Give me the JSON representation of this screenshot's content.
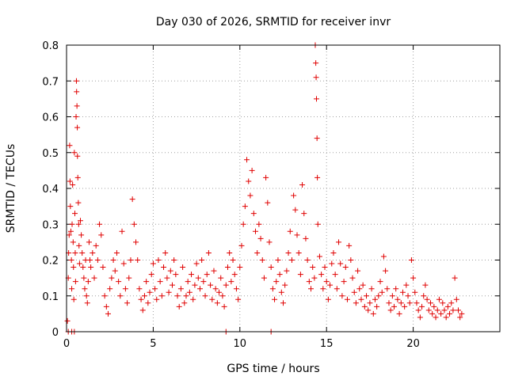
{
  "chart_data": {
    "type": "scatter",
    "title": "Day 030 of 2026, SRMTID for receiver invr",
    "xlabel": "GPS time / hours",
    "ylabel": "SRMTID / TECUs",
    "xlim": [
      0,
      25
    ],
    "ylim": [
      0,
      0.8
    ],
    "x_ticks": [
      0,
      5,
      10,
      15,
      20
    ],
    "x_tick_labels": [
      "0",
      "5",
      "10",
      "15",
      "20"
    ],
    "y_ticks": [
      0,
      0.1,
      0.2,
      0.3,
      0.4,
      0.5,
      0.6,
      0.7,
      0.8
    ],
    "y_tick_labels": [
      "0",
      "0.1",
      "0.2",
      "0.3",
      "0.4",
      "0.5",
      "0.6",
      "0.7",
      "0.8"
    ],
    "grid": true,
    "marker": "plus",
    "color": "#e00000",
    "points": [
      [
        0.05,
        0.03
      ],
      [
        0.1,
        0.15
      ],
      [
        0.12,
        0.22
      ],
      [
        0.15,
        0.27
      ],
      [
        0.18,
        0.52
      ],
      [
        0.2,
        0.42
      ],
      [
        0.22,
        0.35
      ],
      [
        0.25,
        0.28
      ],
      [
        0.28,
        0.2
      ],
      [
        0.3,
        0.12
      ],
      [
        0.32,
        0.3
      ],
      [
        0.35,
        0.41
      ],
      [
        0.38,
        0.25
      ],
      [
        0.4,
        0.18
      ],
      [
        0.42,
        0.09
      ],
      [
        0.45,
        0.5
      ],
      [
        0.48,
        0.33
      ],
      [
        0.5,
        0.22
      ],
      [
        0.52,
        0.14
      ],
      [
        0.55,
        0.6
      ],
      [
        0.57,
        0.7
      ],
      [
        0.58,
        0.67
      ],
      [
        0.6,
        0.63
      ],
      [
        0.62,
        0.57
      ],
      [
        0.63,
        0.49
      ],
      [
        0.65,
        0.43
      ],
      [
        0.68,
        0.36
      ],
      [
        0.7,
        0.3
      ],
      [
        0.72,
        0.24
      ],
      [
        0.75,
        0.19
      ],
      [
        0.8,
        0.31
      ],
      [
        0.85,
        0.27
      ],
      [
        0.9,
        0.22
      ],
      [
        0.95,
        0.18
      ],
      [
        1.0,
        0.15
      ],
      [
        1.05,
        0.12
      ],
      [
        1.1,
        0.2
      ],
      [
        1.15,
        0.1
      ],
      [
        1.2,
        0.08
      ],
      [
        1.25,
        0.14
      ],
      [
        1.3,
        0.25
      ],
      [
        1.35,
        0.2
      ],
      [
        1.4,
        0.18
      ],
      [
        1.5,
        0.22
      ],
      [
        1.6,
        0.15
      ],
      [
        1.7,
        0.24
      ],
      [
        1.8,
        0.2
      ],
      [
        1.9,
        0.3
      ],
      [
        2.0,
        0.27
      ],
      [
        2.1,
        0.18
      ],
      [
        2.2,
        0.1
      ],
      [
        2.3,
        0.07
      ],
      [
        2.4,
        0.05
      ],
      [
        2.5,
        0.12
      ],
      [
        2.6,
        0.15
      ],
      [
        2.7,
        0.2
      ],
      [
        2.8,
        0.17
      ],
      [
        2.9,
        0.22
      ],
      [
        3.0,
        0.14
      ],
      [
        3.1,
        0.1
      ],
      [
        3.2,
        0.28
      ],
      [
        3.3,
        0.19
      ],
      [
        3.4,
        0.12
      ],
      [
        3.5,
        0.08
      ],
      [
        3.6,
        0.15
      ],
      [
        3.7,
        0.2
      ],
      [
        3.8,
        0.37
      ],
      [
        3.9,
        0.3
      ],
      [
        4.0,
        0.25
      ],
      [
        4.1,
        0.2
      ],
      [
        4.2,
        0.12
      ],
      [
        4.3,
        0.09
      ],
      [
        4.4,
        0.06
      ],
      [
        4.5,
        0.1
      ],
      [
        4.6,
        0.14
      ],
      [
        4.7,
        0.08
      ],
      [
        4.8,
        0.11
      ],
      [
        4.9,
        0.16
      ],
      [
        5.0,
        0.19
      ],
      [
        5.1,
        0.12
      ],
      [
        5.2,
        0.09
      ],
      [
        5.3,
        0.2
      ],
      [
        5.4,
        0.14
      ],
      [
        5.5,
        0.1
      ],
      [
        5.6,
        0.18
      ],
      [
        5.7,
        0.22
      ],
      [
        5.8,
        0.15
      ],
      [
        5.9,
        0.11
      ],
      [
        6.0,
        0.17
      ],
      [
        6.1,
        0.13
      ],
      [
        6.2,
        0.2
      ],
      [
        6.3,
        0.16
      ],
      [
        6.4,
        0.1
      ],
      [
        6.5,
        0.07
      ],
      [
        6.6,
        0.12
      ],
      [
        6.7,
        0.18
      ],
      [
        6.8,
        0.08
      ],
      [
        6.9,
        0.1
      ],
      [
        7.0,
        0.14
      ],
      [
        7.1,
        0.11
      ],
      [
        7.2,
        0.16
      ],
      [
        7.3,
        0.09
      ],
      [
        7.4,
        0.13
      ],
      [
        7.5,
        0.19
      ],
      [
        7.6,
        0.15
      ],
      [
        7.7,
        0.12
      ],
      [
        7.8,
        0.2
      ],
      [
        7.9,
        0.14
      ],
      [
        8.0,
        0.1
      ],
      [
        8.1,
        0.16
      ],
      [
        8.2,
        0.22
      ],
      [
        8.3,
        0.13
      ],
      [
        8.4,
        0.09
      ],
      [
        8.5,
        0.17
      ],
      [
        8.6,
        0.12
      ],
      [
        8.7,
        0.08
      ],
      [
        8.8,
        0.11
      ],
      [
        8.9,
        0.15
      ],
      [
        9.0,
        0.1
      ],
      [
        9.1,
        0.07
      ],
      [
        9.2,
        0.13
      ],
      [
        9.3,
        0.18
      ],
      [
        9.4,
        0.22
      ],
      [
        9.5,
        0.14
      ],
      [
        9.6,
        0.2
      ],
      [
        9.7,
        0.16
      ],
      [
        9.8,
        0.12
      ],
      [
        9.9,
        0.09
      ],
      [
        10.0,
        0.18
      ],
      [
        10.1,
        0.24
      ],
      [
        10.2,
        0.3
      ],
      [
        10.3,
        0.35
      ],
      [
        10.4,
        0.48
      ],
      [
        10.5,
        0.42
      ],
      [
        10.6,
        0.38
      ],
      [
        10.7,
        0.45
      ],
      [
        10.8,
        0.33
      ],
      [
        10.9,
        0.28
      ],
      [
        11.0,
        0.22
      ],
      [
        11.1,
        0.3
      ],
      [
        11.2,
        0.26
      ],
      [
        11.3,
        0.2
      ],
      [
        11.4,
        0.15
      ],
      [
        11.5,
        0.43
      ],
      [
        11.6,
        0.36
      ],
      [
        11.7,
        0.25
      ],
      [
        11.8,
        0.18
      ],
      [
        11.9,
        0.12
      ],
      [
        12.0,
        0.09
      ],
      [
        12.1,
        0.14
      ],
      [
        12.2,
        0.2
      ],
      [
        12.3,
        0.16
      ],
      [
        12.4,
        0.11
      ],
      [
        12.5,
        0.08
      ],
      [
        12.6,
        0.13
      ],
      [
        12.7,
        0.17
      ],
      [
        12.8,
        0.22
      ],
      [
        12.9,
        0.28
      ],
      [
        13.0,
        0.2
      ],
      [
        13.1,
        0.38
      ],
      [
        13.2,
        0.34
      ],
      [
        13.3,
        0.27
      ],
      [
        13.4,
        0.22
      ],
      [
        13.5,
        0.16
      ],
      [
        13.6,
        0.41
      ],
      [
        13.7,
        0.33
      ],
      [
        13.8,
        0.26
      ],
      [
        13.9,
        0.2
      ],
      [
        14.0,
        0.14
      ],
      [
        14.1,
        0.12
      ],
      [
        14.2,
        0.18
      ],
      [
        14.3,
        0.15
      ],
      [
        14.35,
        0.8
      ],
      [
        14.38,
        0.75
      ],
      [
        14.4,
        0.71
      ],
      [
        14.42,
        0.65
      ],
      [
        14.45,
        0.54
      ],
      [
        14.47,
        0.43
      ],
      [
        14.5,
        0.3
      ],
      [
        14.6,
        0.21
      ],
      [
        14.7,
        0.16
      ],
      [
        14.8,
        0.12
      ],
      [
        14.9,
        0.18
      ],
      [
        15.0,
        0.14
      ],
      [
        15.1,
        0.09
      ],
      [
        15.2,
        0.13
      ],
      [
        15.3,
        0.19
      ],
      [
        15.4,
        0.22
      ],
      [
        15.5,
        0.16
      ],
      [
        15.6,
        0.12
      ],
      [
        15.7,
        0.25
      ],
      [
        15.8,
        0.19
      ],
      [
        15.9,
        0.1
      ],
      [
        16.0,
        0.14
      ],
      [
        16.1,
        0.18
      ],
      [
        16.2,
        0.09
      ],
      [
        16.3,
        0.24
      ],
      [
        16.4,
        0.2
      ],
      [
        16.5,
        0.15
      ],
      [
        16.6,
        0.11
      ],
      [
        16.7,
        0.08
      ],
      [
        16.8,
        0.17
      ],
      [
        16.9,
        0.12
      ],
      [
        17.0,
        0.09
      ],
      [
        17.1,
        0.13
      ],
      [
        17.2,
        0.07
      ],
      [
        17.3,
        0.1
      ],
      [
        17.4,
        0.06
      ],
      [
        17.5,
        0.08
      ],
      [
        17.6,
        0.12
      ],
      [
        17.7,
        0.05
      ],
      [
        17.8,
        0.09
      ],
      [
        17.9,
        0.07
      ],
      [
        18.0,
        0.1
      ],
      [
        18.1,
        0.14
      ],
      [
        18.2,
        0.11
      ],
      [
        18.3,
        0.21
      ],
      [
        18.4,
        0.17
      ],
      [
        18.5,
        0.12
      ],
      [
        18.6,
        0.08
      ],
      [
        18.7,
        0.06
      ],
      [
        18.8,
        0.1
      ],
      [
        18.9,
        0.07
      ],
      [
        19.0,
        0.12
      ],
      [
        19.1,
        0.09
      ],
      [
        19.2,
        0.05
      ],
      [
        19.3,
        0.08
      ],
      [
        19.4,
        0.11
      ],
      [
        19.5,
        0.07
      ],
      [
        19.6,
        0.13
      ],
      [
        19.7,
        0.1
      ],
      [
        19.8,
        0.08
      ],
      [
        19.9,
        0.2
      ],
      [
        20.0,
        0.15
      ],
      [
        20.1,
        0.11
      ],
      [
        20.2,
        0.08
      ],
      [
        20.3,
        0.06
      ],
      [
        20.4,
        0.04
      ],
      [
        20.5,
        0.07
      ],
      [
        20.6,
        0.1
      ],
      [
        20.7,
        0.13
      ],
      [
        20.8,
        0.09
      ],
      [
        20.9,
        0.06
      ],
      [
        21.0,
        0.08
      ],
      [
        21.1,
        0.05
      ],
      [
        21.2,
        0.07
      ],
      [
        21.3,
        0.04
      ],
      [
        21.4,
        0.06
      ],
      [
        21.5,
        0.09
      ],
      [
        21.6,
        0.05
      ],
      [
        21.7,
        0.08
      ],
      [
        21.8,
        0.06
      ],
      [
        21.9,
        0.04
      ],
      [
        22.0,
        0.07
      ],
      [
        22.1,
        0.05
      ],
      [
        22.2,
        0.08
      ],
      [
        22.3,
        0.06
      ],
      [
        22.4,
        0.15
      ],
      [
        22.5,
        0.09
      ],
      [
        22.6,
        0.06
      ],
      [
        22.7,
        0.04
      ],
      [
        22.8,
        0.05
      ],
      [
        0.1,
        0.0
      ],
      [
        0.3,
        0.0
      ],
      [
        0.45,
        0.0
      ],
      [
        9.2,
        0.0
      ],
      [
        11.8,
        0.0
      ]
    ]
  }
}
